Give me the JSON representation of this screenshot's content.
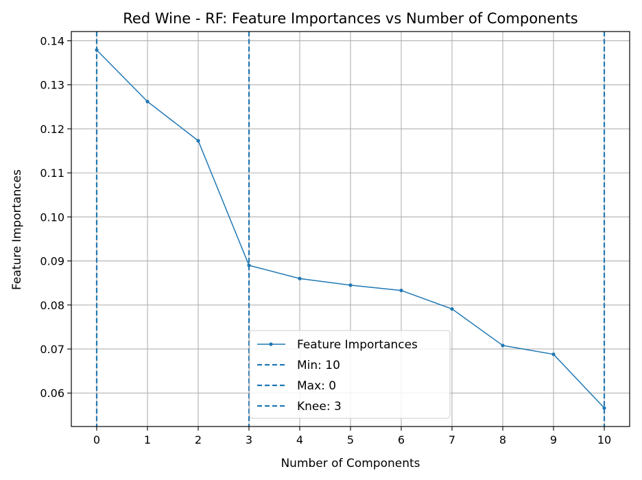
{
  "colors": {
    "series": "#1f77b4",
    "grid": "#b0b0b0",
    "axes": "#000000",
    "background": "#ffffff",
    "legend_border": "#cccccc"
  },
  "chart_data": {
    "type": "line",
    "title": "Red Wine - RF: Feature Importances vs Number of Components",
    "xlabel": "Number of Components",
    "ylabel": "Feature Importances",
    "xlim": [
      -0.5,
      10.5
    ],
    "ylim": [
      0.0524,
      0.1421
    ],
    "x_ticks": [
      0,
      1,
      2,
      3,
      4,
      5,
      6,
      7,
      8,
      9,
      10
    ],
    "x_tick_labels": [
      "0",
      "1",
      "2",
      "3",
      "4",
      "5",
      "6",
      "7",
      "8",
      "9",
      "10"
    ],
    "y_ticks": [
      0.06,
      0.07,
      0.08,
      0.09,
      0.1,
      0.11,
      0.12,
      0.13,
      0.14
    ],
    "y_tick_labels": [
      "0.06",
      "0.07",
      "0.08",
      "0.09",
      "0.10",
      "0.11",
      "0.12",
      "0.13",
      "0.14"
    ],
    "grid": true,
    "legend_position": "lower center",
    "series": [
      {
        "name": "Feature Importances",
        "style": "solid line with small dot markers",
        "x": [
          0,
          1,
          2,
          3,
          4,
          5,
          6,
          7,
          8,
          9,
          10
        ],
        "values": [
          0.1379,
          0.1262,
          0.1173,
          0.089,
          0.086,
          0.0845,
          0.0833,
          0.0791,
          0.0708,
          0.0688,
          0.0566
        ]
      }
    ],
    "vlines": [
      {
        "name": "Min: 10",
        "x": 10,
        "style": "dashed"
      },
      {
        "name": "Max: 0",
        "x": 0,
        "style": "dashed"
      },
      {
        "name": "Knee: 3",
        "x": 3,
        "style": "dashed"
      }
    ]
  }
}
